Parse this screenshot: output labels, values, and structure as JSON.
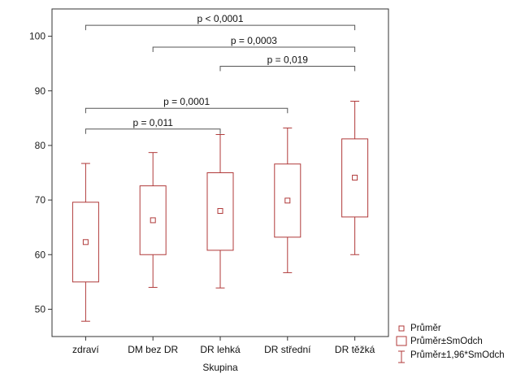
{
  "chart_data": {
    "type": "boxplot",
    "xlabel": "Skupina",
    "ylabel": "",
    "ylim": [
      45,
      105
    ],
    "yticks": [
      50,
      60,
      70,
      80,
      90,
      100
    ],
    "grid": false,
    "legend_position": "bottom-right",
    "categories": [
      "zdraví",
      "DM bez DR",
      "DR lehká",
      "DR střední",
      "DR těžká"
    ],
    "series": [
      {
        "mean": 62.3,
        "sd_low": 55.0,
        "sd_high": 69.6,
        "ci_low": 47.8,
        "ci_high": 76.7
      },
      {
        "mean": 66.3,
        "sd_low": 60.0,
        "sd_high": 72.6,
        "ci_low": 54.0,
        "ci_high": 78.7
      },
      {
        "mean": 68.0,
        "sd_low": 60.8,
        "sd_high": 75.0,
        "ci_low": 53.9,
        "ci_high": 82.0
      },
      {
        "mean": 69.9,
        "sd_low": 63.2,
        "sd_high": 76.6,
        "ci_low": 56.7,
        "ci_high": 83.2
      },
      {
        "mean": 74.1,
        "sd_low": 66.9,
        "sd_high": 81.2,
        "ci_low": 60.0,
        "ci_high": 88.1
      }
    ],
    "legend": [
      "Průměr",
      "Průměr±SmOdch",
      "Průměr±1,96*SmOdch"
    ],
    "annotations": [
      {
        "from": 0,
        "to": 4,
        "y": 102.0,
        "label": "p < 0,0001"
      },
      {
        "from": 1,
        "to": 4,
        "y": 98.0,
        "label": "p = 0,0003"
      },
      {
        "from": 2,
        "to": 4,
        "y": 94.5,
        "label": "p = 0,019"
      },
      {
        "from": 0,
        "to": 3,
        "y": 86.8,
        "label": "p = 0,0001"
      },
      {
        "from": 0,
        "to": 2,
        "y": 83.0,
        "label": "p = 0,011"
      }
    ],
    "colors": {
      "marks": "#b03a3a",
      "frame": "#333333",
      "text": "#111111"
    }
  }
}
